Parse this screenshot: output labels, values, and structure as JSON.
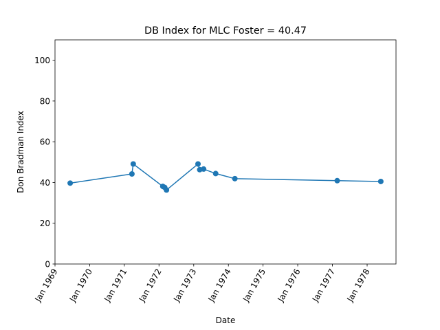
{
  "chart_data": {
    "type": "line",
    "title": "DB Index for MLC Foster = 40.47",
    "xlabel": "Date",
    "ylabel": "Don Bradman Index",
    "xlim": [
      "1969-01-01",
      "1978-11-01"
    ],
    "ylim": [
      0,
      110
    ],
    "x_ticks": [
      {
        "date": "1969-01-01",
        "label": "Jan 1969"
      },
      {
        "date": "1970-01-01",
        "label": "Jan 1970"
      },
      {
        "date": "1971-01-01",
        "label": "Jan 1971"
      },
      {
        "date": "1972-01-01",
        "label": "Jan 1972"
      },
      {
        "date": "1973-01-01",
        "label": "Jan 1973"
      },
      {
        "date": "1974-01-01",
        "label": "Jan 1974"
      },
      {
        "date": "1975-01-01",
        "label": "Jan 1975"
      },
      {
        "date": "1976-01-01",
        "label": "Jan 1976"
      },
      {
        "date": "1977-01-01",
        "label": "Jan 1977"
      },
      {
        "date": "1978-01-01",
        "label": "Jan 1978"
      }
    ],
    "y_ticks": [
      {
        "value": 0,
        "label": "0"
      },
      {
        "value": 20,
        "label": "20"
      },
      {
        "value": 40,
        "label": "40"
      },
      {
        "value": 60,
        "label": "60"
      },
      {
        "value": 80,
        "label": "80"
      },
      {
        "value": 100,
        "label": "100"
      }
    ],
    "grid": false,
    "color": "#1f77b4",
    "series": [
      {
        "points": [
          {
            "x": "1969-06-10",
            "y": 39.7
          },
          {
            "x": "1971-03-22",
            "y": 44.2
          },
          {
            "x": "1971-04-05",
            "y": 49.1
          },
          {
            "x": "1972-02-10",
            "y": 38.1
          },
          {
            "x": "1972-03-01",
            "y": 37.6
          },
          {
            "x": "1972-03-20",
            "y": 36.3
          },
          {
            "x": "1973-02-15",
            "y": 49.1
          },
          {
            "x": "1973-03-05",
            "y": 46.3
          },
          {
            "x": "1973-04-15",
            "y": 46.6
          },
          {
            "x": "1973-08-20",
            "y": 44.4
          },
          {
            "x": "1974-03-10",
            "y": 41.9
          },
          {
            "x": "1977-02-20",
            "y": 40.9
          },
          {
            "x": "1978-05-25",
            "y": 40.5
          }
        ]
      }
    ]
  }
}
